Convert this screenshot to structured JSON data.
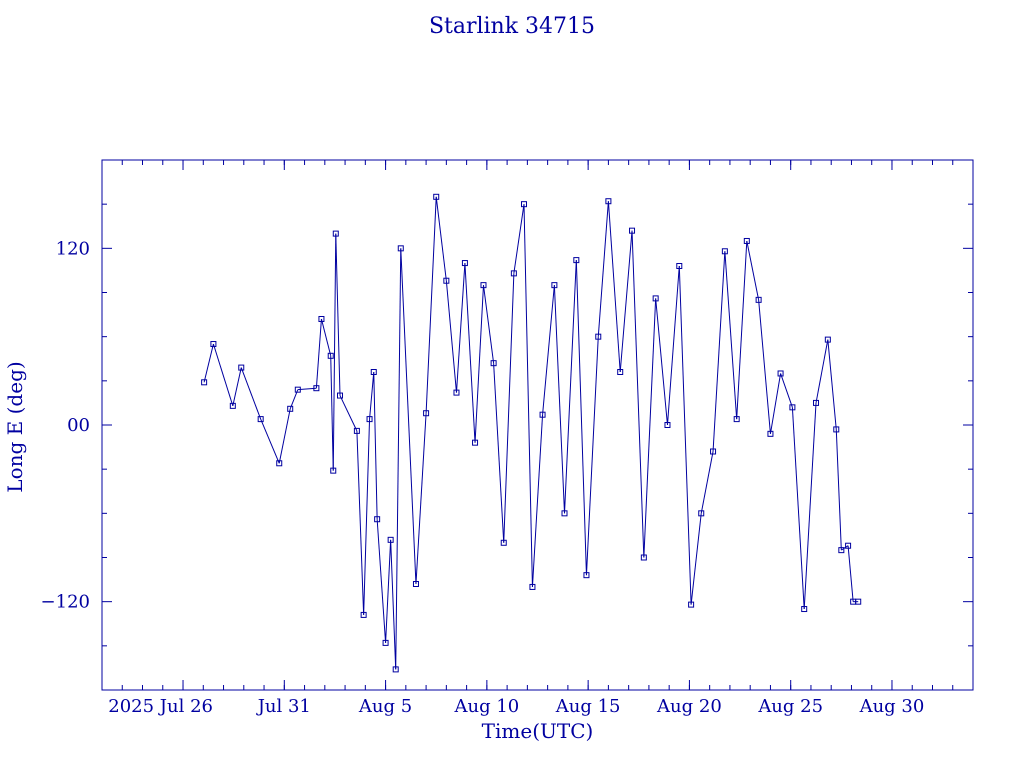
{
  "chart_data": {
    "type": "line",
    "title": "Starlink 34715",
    "xlabel": "Time(UTC)",
    "ylabel": "Long E (deg)",
    "xlim": [
      "2025-07-22",
      "2025-09-03"
    ],
    "ylim": [
      -180,
      180
    ],
    "yticks": [
      -120,
      0,
      120
    ],
    "ytick_labels": [
      "−120",
      "00",
      "120"
    ],
    "xtick_labels": [
      "2025 Jul 26",
      "Jul 31",
      "Aug  5",
      "Aug 10",
      "Aug 15",
      "Aug 20",
      "Aug 25",
      "Aug 30"
    ],
    "xtick_dates": [
      "2025-07-26",
      "2025-07-31",
      "2025-08-05",
      "2025-08-10",
      "2025-08-15",
      "2025-08-20",
      "2025-08-25",
      "2025-08-30"
    ],
    "color": "#0000a0",
    "grid": false,
    "series": [
      {
        "x": [
          "2025-07-27T01:00",
          "2025-07-27T12:00",
          "2025-07-28T11:00",
          "2025-07-28T21:00",
          "2025-07-29T20:00",
          "2025-07-30T18:00",
          "2025-07-31T07:00",
          "2025-07-31T16:00",
          "2025-08-01T14:00",
          "2025-08-01T20:00",
          "2025-08-02T07:00",
          "2025-08-02T10:00",
          "2025-08-02T13:00",
          "2025-08-02T18:00",
          "2025-08-03T14:00",
          "2025-08-03T22:00",
          "2025-08-04T05:00",
          "2025-08-04T10:00",
          "2025-08-04T14:00",
          "2025-08-05T00:00",
          "2025-08-05T06:00",
          "2025-08-05T12:00",
          "2025-08-05T18:00",
          "2025-08-06T12:00",
          "2025-08-07T00:00",
          "2025-08-07T12:00",
          "2025-08-08T00:00",
          "2025-08-08T12:00",
          "2025-08-08T22:00",
          "2025-08-09T10:00",
          "2025-08-09T20:00",
          "2025-08-10T08:00",
          "2025-08-10T20:00",
          "2025-08-11T08:00",
          "2025-08-11T20:00",
          "2025-08-12T06:00",
          "2025-08-12T18:00",
          "2025-08-13T08:00",
          "2025-08-13T20:00",
          "2025-08-14T10:00",
          "2025-08-14T22:00",
          "2025-08-15T12:00",
          "2025-08-16T00:00",
          "2025-08-16T14:00",
          "2025-08-17T04:00",
          "2025-08-17T18:00",
          "2025-08-18T08:00",
          "2025-08-18T22:00",
          "2025-08-19T12:00",
          "2025-08-20T02:00",
          "2025-08-20T14:00",
          "2025-08-21T04:00",
          "2025-08-21T18:00",
          "2025-08-22T08:00",
          "2025-08-22T20:00",
          "2025-08-23T10:00",
          "2025-08-24T00:00",
          "2025-08-24T12:00",
          "2025-08-25T02:00",
          "2025-08-25T16:00",
          "2025-08-26T06:00",
          "2025-08-26T20:00",
          "2025-08-27T06:00",
          "2025-08-27T12:00",
          "2025-08-27T20:00",
          "2025-08-28T02:00",
          "2025-08-28T08:00"
        ],
        "y": [
          29,
          55,
          13,
          39,
          4,
          -26,
          11,
          24,
          25,
          72,
          47,
          -31,
          130,
          20,
          -4,
          -129,
          4,
          36,
          -64,
          -148,
          -78,
          -166,
          120,
          -108,
          8,
          155,
          98,
          22,
          110,
          -12,
          95,
          42,
          -80,
          103,
          150,
          -110,
          7,
          95,
          -60,
          112,
          -102,
          60,
          152,
          36,
          132,
          -90,
          86,
          0,
          108,
          -122,
          -60,
          -18,
          118,
          4,
          125,
          85,
          -6,
          35,
          12,
          -125,
          15,
          58,
          -3,
          -85,
          -82,
          -120,
          -120
        ]
      }
    ]
  }
}
